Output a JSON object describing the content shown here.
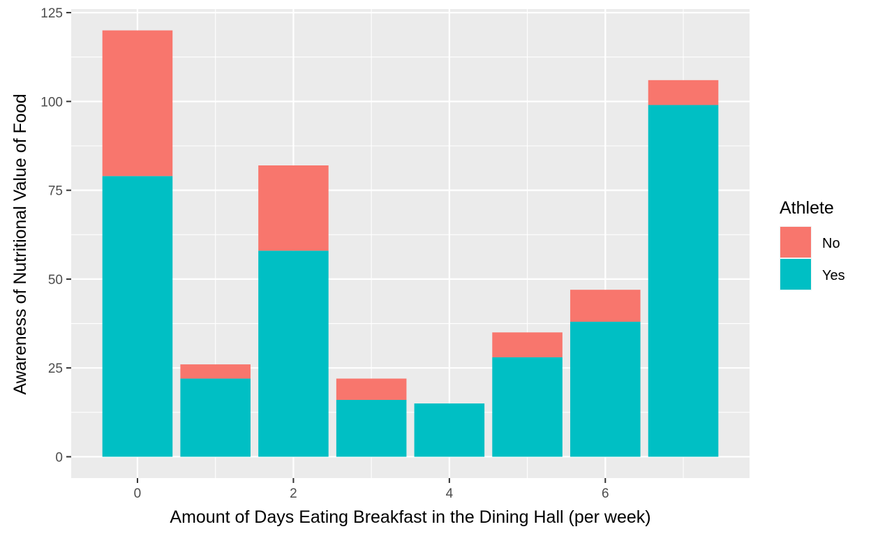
{
  "chart_data": {
    "type": "bar",
    "stacked": true,
    "x": [
      0,
      1,
      2,
      3,
      4,
      5,
      6,
      7
    ],
    "series": [
      {
        "name": "No",
        "color": "#F8766D",
        "values": [
          41,
          4,
          24,
          6,
          0,
          7,
          9,
          7
        ]
      },
      {
        "name": "Yes",
        "color": "#00BFC4",
        "values": [
          79,
          22,
          58,
          16,
          15,
          28,
          38,
          99
        ]
      }
    ],
    "xlabel": "Amount of Days Eating Breakfast in the Dining Hall (per week)",
    "ylabel": "Awareness of Nutritional Value of Food",
    "xlim": [
      -0.85,
      7.85
    ],
    "ylim": [
      -6,
      126
    ],
    "x_ticks": [
      "0",
      "2",
      "4",
      "6"
    ],
    "y_ticks": [
      "0",
      "25",
      "50",
      "75",
      "100",
      "125"
    ],
    "grid": true,
    "legend": {
      "title": "Athlete",
      "position": "right",
      "entries": [
        "No",
        "Yes"
      ]
    }
  }
}
